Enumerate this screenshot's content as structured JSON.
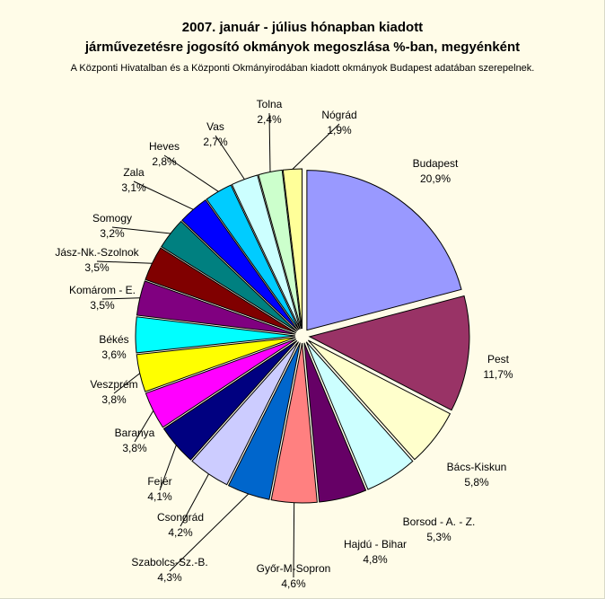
{
  "chart": {
    "title_line1": "2007. január - július hónapban kiadott",
    "title_line2": "járművezetésre jogosító okmányok megoszlása %-ban, megyénként",
    "subtitle": "A Központi Hivatalban és a Központi Okmányirodában kiadott okmányok Budapest adatában szerepelnek."
  },
  "colors": {
    "background": "#fffce8",
    "slice_outline": "#000000"
  },
  "chart_data": {
    "type": "pie",
    "title": "2007. január - július hónapban kiadott járművezetésre jogosító okmányok megoszlása %-ban, megyénként",
    "subtitle": "A Központi Hivatalban és a Központi Okmányirodában kiadott okmányok Budapest adatában szerepelnek.",
    "exploded": true,
    "legend": "none",
    "slices": [
      {
        "label": "Budapest",
        "value": 20.9,
        "display": "20,9%",
        "color": "#9999ff"
      },
      {
        "label": "Pest",
        "value": 11.7,
        "display": "11,7%",
        "color": "#993366"
      },
      {
        "label": "Bács-Kiskun",
        "value": 5.8,
        "display": "5,8%",
        "color": "#ffffcc"
      },
      {
        "label": "Borsod - A. - Z.",
        "value": 5.3,
        "display": "5,3%",
        "color": "#ccffff"
      },
      {
        "label": "Hajdú - Bihar",
        "value": 4.8,
        "display": "4,8%",
        "color": "#660066"
      },
      {
        "label": "Győr-M-Sopron",
        "value": 4.6,
        "display": "4,6%",
        "color": "#ff8080"
      },
      {
        "label": "Szabolcs-Sz.-B.",
        "value": 4.3,
        "display": "4,3%",
        "color": "#0066cc"
      },
      {
        "label": "Csongrád",
        "value": 4.2,
        "display": "4,2%",
        "color": "#ccccff"
      },
      {
        "label": "Fejér",
        "value": 4.1,
        "display": "4,1%",
        "color": "#000080"
      },
      {
        "label": "Baranya",
        "value": 3.8,
        "display": "3,8%",
        "color": "#ff00ff"
      },
      {
        "label": "Veszprém",
        "value": 3.8,
        "display": "3,8%",
        "color": "#ffff00"
      },
      {
        "label": "Békés",
        "value": 3.6,
        "display": "3,6%",
        "color": "#00ffff"
      },
      {
        "label": "Komárom - E.",
        "value": 3.5,
        "display": "3,5%",
        "color": "#800080"
      },
      {
        "label": "Jász-Nk.-Szolnok",
        "value": 3.5,
        "display": "3,5%",
        "color": "#800000"
      },
      {
        "label": "Somogy",
        "value": 3.2,
        "display": "3,2%",
        "color": "#008080"
      },
      {
        "label": "Zala",
        "value": 3.1,
        "display": "3,1%",
        "color": "#0000ff"
      },
      {
        "label": "Heves",
        "value": 2.8,
        "display": "2,8%",
        "color": "#00ccff"
      },
      {
        "label": "Vas",
        "value": 2.7,
        "display": "2,7%",
        "color": "#ccffff"
      },
      {
        "label": "Tolna",
        "value": 2.4,
        "display": "2,4%",
        "color": "#ccffcc"
      },
      {
        "label": "Nógrád",
        "value": 1.9,
        "display": "1,9%",
        "color": "#ffff99"
      }
    ]
  }
}
